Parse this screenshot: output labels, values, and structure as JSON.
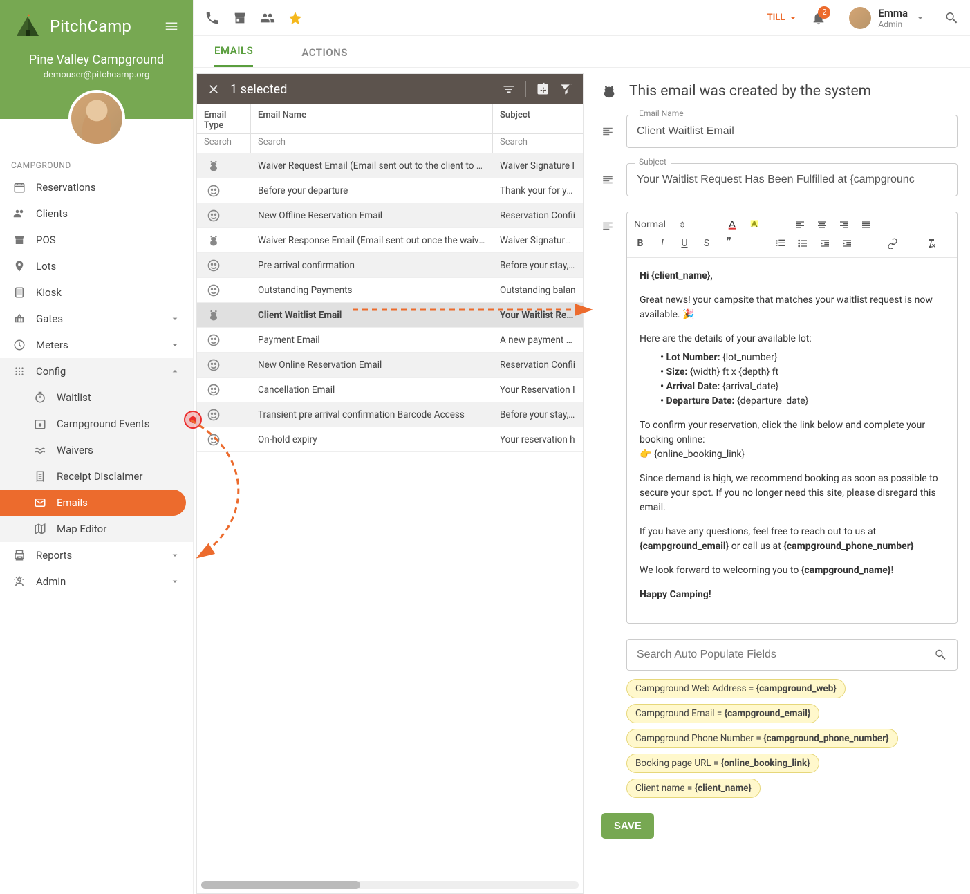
{
  "brand": {
    "name": "PitchCamp"
  },
  "campground": {
    "name": "Pine Valley Campground",
    "email": "demouser@pitchcamp.org"
  },
  "sidebar": {
    "section": "CAMPGROUND",
    "items": [
      {
        "icon": "calendar",
        "label": "Reservations"
      },
      {
        "icon": "people",
        "label": "Clients"
      },
      {
        "icon": "store",
        "label": "POS"
      },
      {
        "icon": "pin",
        "label": "Lots"
      },
      {
        "icon": "tablet",
        "label": "Kiosk"
      },
      {
        "icon": "gate",
        "label": "Gates",
        "expandable": true
      },
      {
        "icon": "clock",
        "label": "Meters",
        "expandable": true
      },
      {
        "icon": "grid",
        "label": "Config",
        "expandable": true,
        "open": true,
        "subs": [
          {
            "icon": "timer",
            "label": "Waitlist"
          },
          {
            "icon": "event",
            "label": "Campground Events"
          },
          {
            "icon": "waves",
            "label": "Waivers"
          },
          {
            "icon": "receipt",
            "label": "Receipt Disclaimer"
          },
          {
            "icon": "mail",
            "label": "Emails",
            "active": true
          },
          {
            "icon": "map",
            "label": "Map Editor"
          }
        ]
      },
      {
        "icon": "print",
        "label": "Reports",
        "expandable": true
      },
      {
        "icon": "admin",
        "label": "Admin",
        "expandable": true
      }
    ]
  },
  "topbar": {
    "till": "TILL",
    "badge": "2",
    "user": {
      "name": "Emma",
      "role": "Admin"
    }
  },
  "tabs": [
    {
      "label": "EMAILS",
      "active": true
    },
    {
      "label": "ACTIONS"
    }
  ],
  "selbar": {
    "text": "1 selected"
  },
  "table": {
    "headers": {
      "type": "Email Type",
      "name": "Email Name",
      "subject": "Subject"
    },
    "search": "Search",
    "rows": [
      {
        "icon": "bug",
        "name": "Waiver Request Email (Email sent out to the client to sign t",
        "subj": "Waiver Signature I",
        "alt": true
      },
      {
        "icon": "face",
        "name": "Before your departure",
        "subj": "Thank your for you"
      },
      {
        "icon": "face",
        "name": "New Offline Reservation Email",
        "subj": "Reservation Confii",
        "alt": true
      },
      {
        "icon": "bug",
        "name": "Waiver Response Email (Email sent out once the waiver ha",
        "subj": "Waiver Signature C"
      },
      {
        "icon": "face",
        "name": "Pre arrival confirmation",
        "subj": "Before your stay, F",
        "alt": true
      },
      {
        "icon": "face",
        "name": "Outstanding Payments",
        "subj": "Outstanding balan"
      },
      {
        "icon": "bug",
        "name": "Client Waitlist Email",
        "subj": "Your Waitlist Requ",
        "sel": true
      },
      {
        "icon": "face",
        "name": "Payment Email",
        "subj": "A new payment ha"
      },
      {
        "icon": "face",
        "name": "New Online Reservation Email",
        "subj": "Reservation Confii",
        "alt": true
      },
      {
        "icon": "face",
        "name": "Cancellation Email",
        "subj": "Your Reservation I"
      },
      {
        "icon": "face",
        "name": "Transient pre arrival confirmation Barcode Access",
        "subj": "Before your stay, F",
        "alt": true
      },
      {
        "icon": "face",
        "name": "On-hold expiry",
        "subj": "Your reservation h"
      }
    ]
  },
  "editor": {
    "system_msg": "This email was created by the system",
    "fields": {
      "name_legend": "Email Name",
      "name_value": "Client Waitlist Email",
      "subject_legend": "Subject",
      "subject_value": "Your Waitlist Request Has Been Fulfilled at {campgrounc"
    },
    "format_label": "Normal",
    "body": {
      "greeting": "Hi {client_name},",
      "p1": "Great news! your campsite that matches your waitlist request is now available. 🎉",
      "p2": "Here are the details of your available lot:",
      "bullets": [
        {
          "label": "Lot Number:",
          "val": " {lot_number}"
        },
        {
          "label": "Size:",
          "val": " {width} ft x {depth} ft"
        },
        {
          "label": "Arrival Date:",
          "val": " {arrival_date}"
        },
        {
          "label": "Departure Date:",
          "val": " {departure_date}"
        }
      ],
      "p3a": "To confirm your reservation, click the link below and complete your booking online:",
      "p3b": "👉 {online_booking_link}",
      "p4": "Since demand is high, we recommend booking as soon as possible to secure your spot. If you no longer need this site, please disregard this email.",
      "p5a": "If you have any questions, feel free to reach out to us at ",
      "p5b": "{campground_email}",
      "p5c": " or call us at ",
      "p5d": "{campground_phone_number}",
      "p6a": "We look forward to welcoming you to ",
      "p6b": "{campground_name}",
      "p6c": "!",
      "p7": "Happy Camping!"
    },
    "search_placeholder": "Search Auto Populate Fields",
    "chips": [
      {
        "pre": "Campground Web Address = ",
        "bold": "{campground_web}"
      },
      {
        "pre": "Campground Email = ",
        "bold": "{campground_email}"
      },
      {
        "pre": "Campground Phone Number = ",
        "bold": "{campground_phone_number}"
      },
      {
        "pre": "Booking page URL = ",
        "bold": "{online_booking_link}"
      },
      {
        "pre": "Client name = ",
        "bold": "{client_name}"
      }
    ],
    "save": "SAVE"
  },
  "colors": {
    "primary": "#77a852",
    "accent": "#ec6b2d"
  }
}
